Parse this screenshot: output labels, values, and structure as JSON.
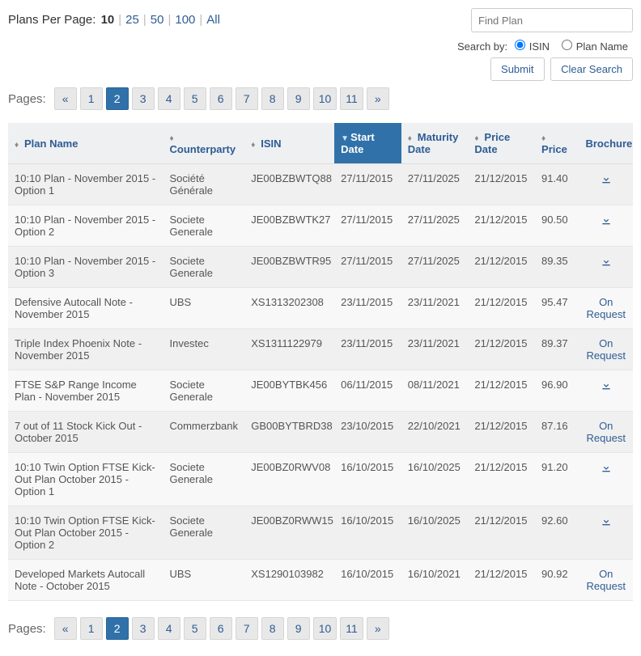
{
  "plansPerPage": {
    "label": "Plans Per Page:",
    "options": [
      "10",
      "25",
      "50",
      "100",
      "All"
    ],
    "active": "10"
  },
  "search": {
    "placeholder": "Find Plan",
    "byLabel": "Search by:",
    "options": {
      "isin": "ISIN",
      "planName": "Plan Name"
    },
    "selected": "isin",
    "submit": "Submit",
    "clear": "Clear Search"
  },
  "pagination": {
    "label": "Pages:",
    "prev": "«",
    "next": "»",
    "pages": [
      "1",
      "2",
      "3",
      "4",
      "5",
      "6",
      "7",
      "8",
      "9",
      "10",
      "11"
    ],
    "active": "2"
  },
  "table": {
    "headers": {
      "planName": "Plan Name",
      "counterparty": "Counterparty",
      "isin": "ISIN",
      "startDate": "Start Date",
      "maturityDate": "Maturity Date",
      "priceDate": "Price Date",
      "price": "Price",
      "brochure": "Brochure"
    },
    "sortedColumn": "startDate",
    "onRequestLabel": "On Request",
    "rows": [
      {
        "planName": "10:10 Plan - November 2015 - Option 1",
        "counterparty": "Société Générale",
        "isin": "JE00BZBWTQ88",
        "startDate": "27/11/2015",
        "maturityDate": "27/11/2025",
        "priceDate": "21/12/2015",
        "price": "91.40",
        "brochure": "download"
      },
      {
        "planName": "10:10 Plan - November 2015 - Option 2",
        "counterparty": "Societe Generale",
        "isin": "JE00BZBWTK27",
        "startDate": "27/11/2015",
        "maturityDate": "27/11/2025",
        "priceDate": "21/12/2015",
        "price": "90.50",
        "brochure": "download"
      },
      {
        "planName": "10:10 Plan - November 2015 - Option 3",
        "counterparty": "Societe Generale",
        "isin": "JE00BZBWTR95",
        "startDate": "27/11/2015",
        "maturityDate": "27/11/2025",
        "priceDate": "21/12/2015",
        "price": "89.35",
        "brochure": "download"
      },
      {
        "planName": "Defensive Autocall Note - November 2015",
        "counterparty": "UBS",
        "isin": "XS1313202308",
        "startDate": "23/11/2015",
        "maturityDate": "23/11/2021",
        "priceDate": "21/12/2015",
        "price": "95.47",
        "brochure": "request"
      },
      {
        "planName": "Triple Index Phoenix Note - November 2015",
        "counterparty": "Investec",
        "isin": "XS1311122979",
        "startDate": "23/11/2015",
        "maturityDate": "23/11/2021",
        "priceDate": "21/12/2015",
        "price": "89.37",
        "brochure": "request"
      },
      {
        "planName": "FTSE S&P Range Income Plan - November 2015",
        "counterparty": "Societe Generale",
        "isin": "JE00BYTBK456",
        "startDate": "06/11/2015",
        "maturityDate": "08/11/2021",
        "priceDate": "21/12/2015",
        "price": "96.90",
        "brochure": "download"
      },
      {
        "planName": "7 out of 11 Stock Kick Out - October 2015",
        "counterparty": "Commerzbank",
        "isin": "GB00BYTBRD38",
        "startDate": "23/10/2015",
        "maturityDate": "22/10/2021",
        "priceDate": "21/12/2015",
        "price": "87.16",
        "brochure": "request"
      },
      {
        "planName": "10:10 Twin Option FTSE Kick-Out Plan October 2015 - Option 1",
        "counterparty": "Societe Generale",
        "isin": "JE00BZ0RWV08",
        "startDate": "16/10/2015",
        "maturityDate": "16/10/2025",
        "priceDate": "21/12/2015",
        "price": "91.20",
        "brochure": "download"
      },
      {
        "planName": "10:10 Twin Option FTSE Kick-Out Plan October 2015 - Option 2",
        "counterparty": "Societe Generale",
        "isin": "JE00BZ0RWW15",
        "startDate": "16/10/2015",
        "maturityDate": "16/10/2025",
        "priceDate": "21/12/2015",
        "price": "92.60",
        "brochure": "download"
      },
      {
        "planName": "Developed Markets Autocall Note - October 2015",
        "counterparty": "UBS",
        "isin": "XS1290103982",
        "startDate": "16/10/2015",
        "maturityDate": "16/10/2021",
        "priceDate": "21/12/2015",
        "price": "90.92",
        "brochure": "request"
      }
    ]
  },
  "colors": {
    "link": "#2e5c94",
    "headerBg": "#eef0f2",
    "sortedBg": "#3071a9",
    "rowOdd": "#f0f0f0",
    "rowEven": "#f8f8f8"
  }
}
